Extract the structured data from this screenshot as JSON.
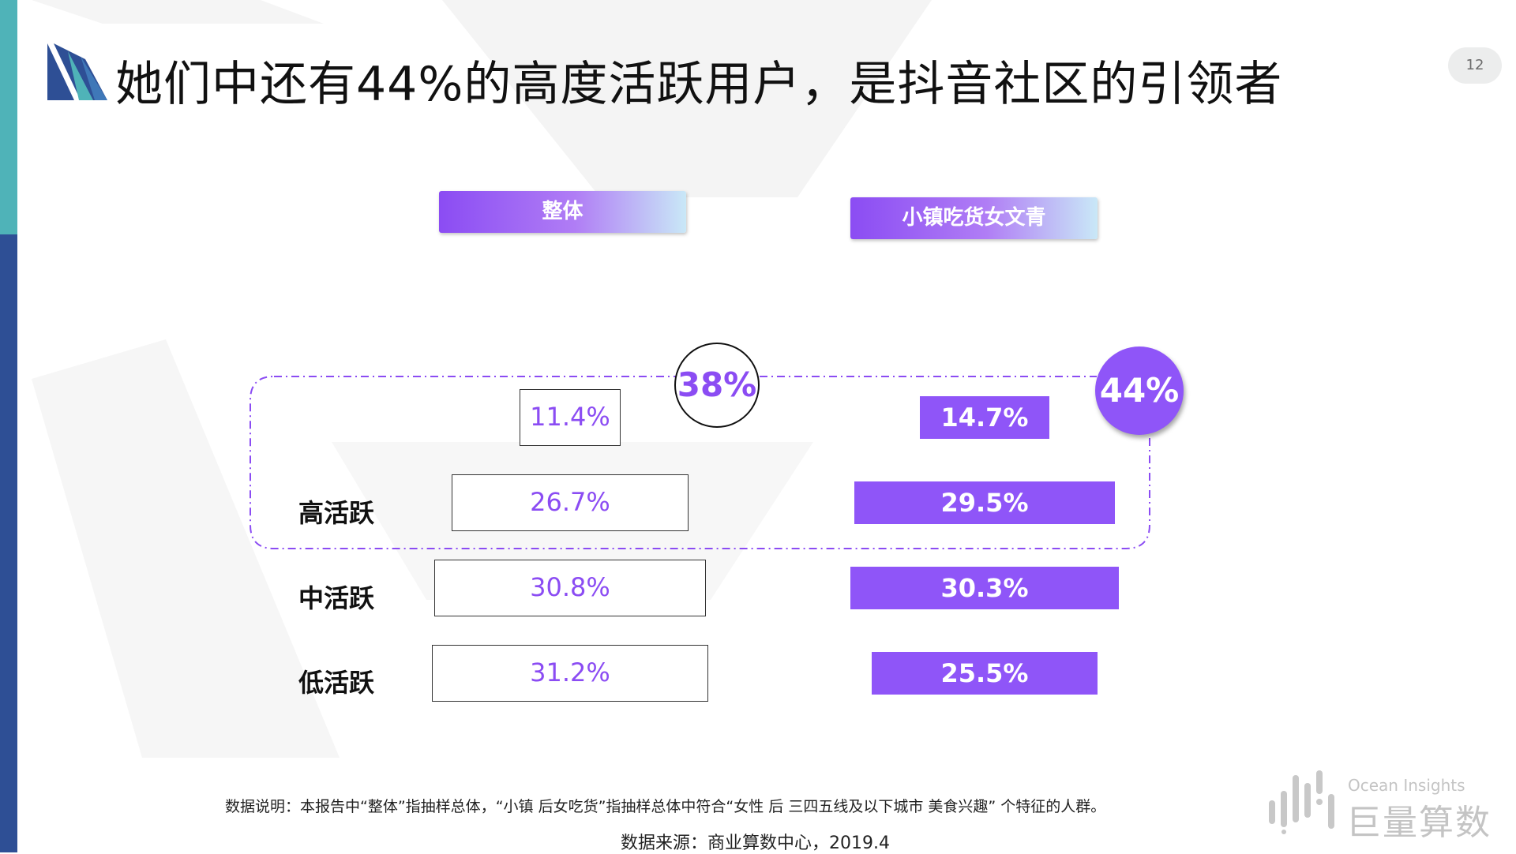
{
  "page": {
    "title": "她们中还有44%的高度活跃用户，是抖音社区的引领者",
    "page_number": "12"
  },
  "headers": {
    "overall": "整体",
    "segment": "小镇吃货女文青"
  },
  "highlights": {
    "overall_high_total": "38%",
    "segment_high_total": "44%"
  },
  "rows": [
    {
      "label": "",
      "overall": "11.4%",
      "segment": "14.7%"
    },
    {
      "label": "高活跃",
      "overall": "26.7%",
      "segment": "29.5%"
    },
    {
      "label": "中活跃",
      "overall": "30.8%",
      "segment": "30.3%"
    },
    {
      "label": "低活跃",
      "overall": "31.2%",
      "segment": "25.5%"
    }
  ],
  "chart_data": {
    "type": "bar",
    "categories": [
      "",
      "高活跃",
      "中活跃",
      "低活跃"
    ],
    "series": [
      {
        "name": "整体",
        "values": [
          11.4,
          26.7,
          30.8,
          31.2
        ]
      },
      {
        "name": "小镇吃货女文青",
        "values": [
          14.7,
          29.5,
          30.3,
          25.5
        ]
      }
    ],
    "annotations": [
      "38%",
      "44%"
    ],
    "value_unit": "%"
  },
  "footer": {
    "note": "数据说明：本报告中“整体”指抽样总体，“小镇 后女吃货”指抽样总体中符合“女性 后 三四五线及以下城市 美食兴趣” 个特征的人群。",
    "source": "数据来源：商业算数中心，2019.4"
  },
  "brand": {
    "en": "Ocean Insights",
    "cn": "巨量算数"
  },
  "colors": {
    "accent": "#8f55f8",
    "teal": "#4fb3b8",
    "navy": "#2e4f95"
  }
}
